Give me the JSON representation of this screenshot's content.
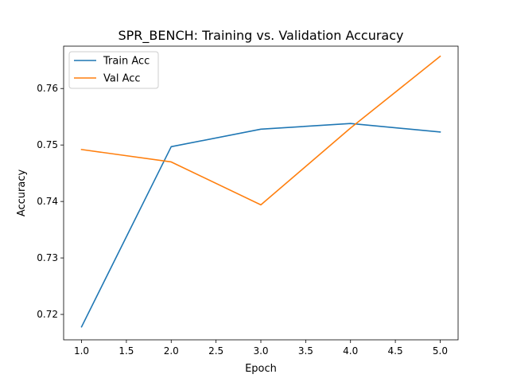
{
  "chart_data": {
    "type": "line",
    "title": "SPR_BENCH: Training vs. Validation Accuracy",
    "xlabel": "Epoch",
    "ylabel": "Accuracy",
    "xlim": [
      0.8,
      5.2
    ],
    "ylim": [
      0.7155,
      0.7675
    ],
    "x": [
      1.0,
      2.0,
      3.0,
      4.0,
      5.0
    ],
    "xticks": [
      "1.0",
      "1.5",
      "2.0",
      "2.5",
      "3.0",
      "3.5",
      "4.0",
      "4.5",
      "5.0"
    ],
    "yticks": [
      "0.72",
      "0.73",
      "0.74",
      "0.75",
      "0.76"
    ],
    "grid": false,
    "legend_position": "upper-left",
    "series": [
      {
        "name": "Train Acc",
        "color": "#1f77b4",
        "values": [
          0.7178,
          0.7497,
          0.7528,
          0.7538,
          0.7523
        ]
      },
      {
        "name": "Val Acc",
        "color": "#ff7f0e",
        "values": [
          0.7492,
          0.747,
          0.7394,
          0.753,
          0.7657
        ]
      }
    ]
  }
}
